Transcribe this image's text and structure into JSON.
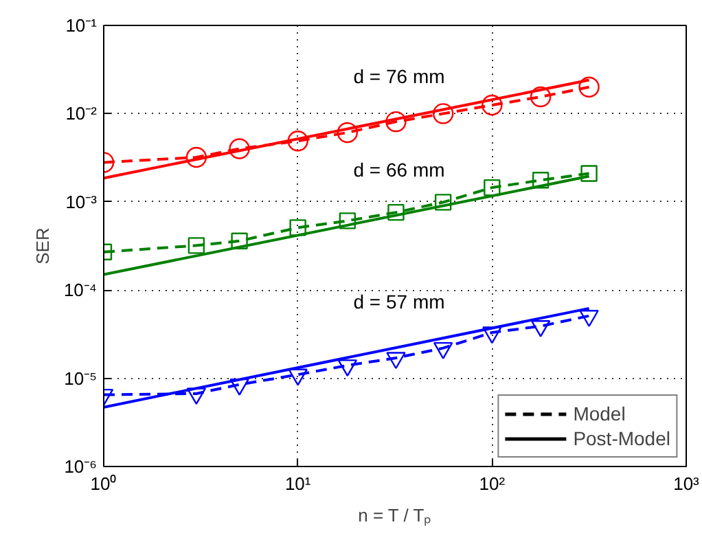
{
  "chart_data": {
    "type": "line",
    "xlabel": "n = T / Tₚ",
    "ylabel": "SER",
    "log": "xy",
    "grid": true,
    "xlim": [
      1,
      1000
    ],
    "xticks": [
      {
        "value": 1,
        "label": "10⁰"
      },
      {
        "value": 10,
        "label": "10¹"
      },
      {
        "value": 100,
        "label": "10²"
      },
      {
        "value": 1000,
        "label": "10³"
      }
    ],
    "ylim": [
      1e-06,
      0.1
    ],
    "yticks": [
      {
        "value": 1e-06,
        "label": "10⁻⁶"
      },
      {
        "value": 1e-05,
        "label": "10⁻⁵"
      },
      {
        "value": 0.0001,
        "label": "10⁻⁴"
      },
      {
        "value": 0.001,
        "label": "10⁻³"
      },
      {
        "value": 0.01,
        "label": "10⁻²"
      },
      {
        "value": 0.1,
        "label": "10⁻¹"
      }
    ],
    "series": [
      {
        "color": "#ff0000",
        "line_style": "dashed",
        "marker": "circle",
        "x": [
          1,
          3,
          5,
          10,
          18,
          32,
          56,
          100,
          178,
          316
        ],
        "values": [
          0.0028,
          0.0032,
          0.004,
          0.0049,
          0.0061,
          0.0081,
          0.01,
          0.0125,
          0.0155,
          0.02
        ]
      },
      {
        "color": "#ff0000",
        "line_style": "solid",
        "marker": "none",
        "x": [
          1,
          316
        ],
        "values": [
          0.00186,
          0.024
        ]
      },
      {
        "color": "#008000",
        "line_style": "dashed",
        "marker": "square",
        "x": [
          1,
          3,
          5,
          10,
          18,
          32,
          56,
          100,
          178,
          316
        ],
        "values": [
          0.00027,
          0.00032,
          0.00036,
          0.00051,
          0.00061,
          0.00076,
          0.00099,
          0.00145,
          0.00176,
          0.0021
        ]
      },
      {
        "color": "#008000",
        "line_style": "solid",
        "marker": "none",
        "x": [
          1,
          316
        ],
        "values": [
          0.00015,
          0.00195
        ]
      },
      {
        "color": "#0000ff",
        "line_style": "dashed",
        "marker": "triangle",
        "x": [
          1,
          3,
          5,
          10,
          18,
          32,
          56,
          100,
          178,
          316
        ],
        "values": [
          6.5e-06,
          6.7e-06,
          8.5e-06,
          1.1e-05,
          1.4e-05,
          1.7e-05,
          2.2e-05,
          3.3e-05,
          3.9e-05,
          5.1e-05
        ]
      },
      {
        "color": "#0000ff",
        "line_style": "solid",
        "marker": "none",
        "x": [
          1,
          316
        ],
        "values": [
          4.7e-06,
          6.2e-05
        ]
      }
    ],
    "annotations": [
      "d = 76 mm",
      "d = 66 mm",
      "d = 57 mm",
      "Model",
      "Post-Model"
    ]
  }
}
